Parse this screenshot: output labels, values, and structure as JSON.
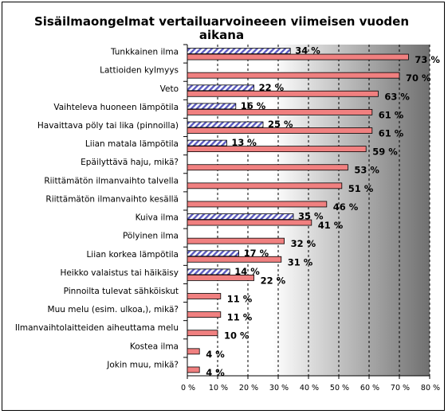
{
  "chart_data": {
    "type": "bar",
    "orientation": "horizontal",
    "title": "Sisäilmaongelmat vertailuarvoineeen viimeisen vuoden aikana",
    "title_lines": [
      "Sisäilmaongelmat vertailuarvoineeen viimeisen vuoden",
      "aikana"
    ],
    "xlim": [
      0,
      80
    ],
    "xticks": [
      0,
      10,
      20,
      30,
      40,
      50,
      60,
      70,
      80
    ],
    "tick_suffix": " %",
    "grid": true,
    "legend": "none",
    "categories": [
      "Tunkkainen ilma",
      "Lattioiden kylmyys",
      "Veto",
      "Vaihteleva huoneen lämpötila",
      "Havaittava pöly tai lika (pinnoilla)",
      "Liian matala lämpötila",
      "Epäilyttävä haju, mikä?",
      "Riittämätön ilmanvaihto talvella",
      "Riittämätön ilmanvaihto kesällä",
      "Kuiva ilma",
      "Pölyinen ilma",
      "Liian korkea lämpötila",
      "Heikko valaistus tai häikäisy",
      "Pinnoilta tulevat sähköiskut",
      "Muu melu (esim. ulkoa,), mikä?",
      "Ilmanvaihtolaitteiden aiheuttama melu",
      "Kostea ilma",
      "Jokin muu, mikä?"
    ],
    "series": [
      {
        "style": "hatched",
        "color": "#5b5bbf",
        "values": [
          34,
          null,
          22,
          16,
          25,
          13,
          null,
          null,
          null,
          35,
          null,
          17,
          14,
          null,
          null,
          null,
          null,
          null
        ]
      },
      {
        "style": "solid",
        "color": "#f08080",
        "values": [
          73,
          70,
          63,
          61,
          61,
          59,
          53,
          51,
          46,
          41,
          32,
          31,
          22,
          11,
          11,
          10,
          4,
          4
        ]
      }
    ]
  },
  "colors": {
    "background_gradient_start": "#ffffff",
    "background_gradient_end": "#707070",
    "bar_solid": "#f08080",
    "bar_hatched": "#5b5bbf"
  }
}
